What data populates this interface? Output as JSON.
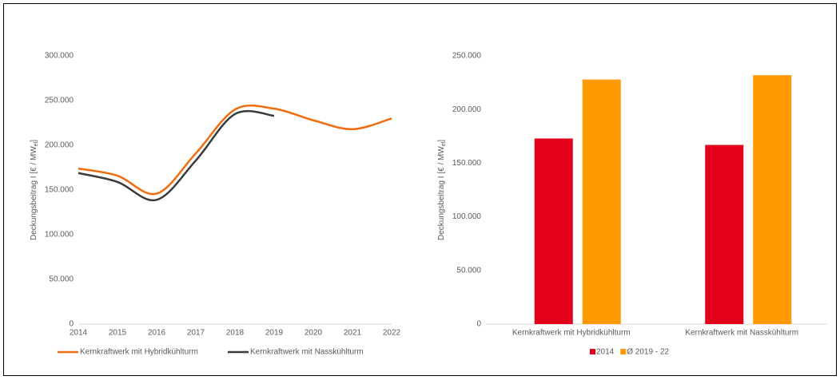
{
  "chart_data": [
    {
      "type": "line",
      "ylabel": [
        "Deckungsbeitrag  I [€ / MW",
        "el",
        "]"
      ],
      "x": [
        2014,
        2015,
        2016,
        2017,
        2018,
        2019,
        2020,
        2021,
        2022
      ],
      "xlim": [
        2014,
        2022
      ],
      "xticks": [
        2014,
        2015,
        2016,
        2017,
        2018,
        2019,
        2020,
        2021,
        2022
      ],
      "ylim": [
        0,
        300000
      ],
      "yticks": [
        0,
        {
          "value": 50000,
          "label": "50.000"
        },
        {
          "value": 100000,
          "label": "100.000"
        },
        {
          "value": 150000,
          "label": "150.000"
        },
        {
          "value": 200000,
          "label": "200.000"
        },
        {
          "value": 250000,
          "label": "250.000"
        },
        {
          "value": 300000,
          "label": "300.000"
        }
      ],
      "series": [
        {
          "name": "Kernkraftwerk mit Hybridkühlturm",
          "color": "#f26b0f",
          "values": [
            174000,
            166000,
            146000,
            191000,
            240000,
            241000,
            228000,
            218000,
            230000
          ]
        },
        {
          "name": "Kernkraftwerk mit Nasskühlturm",
          "color": "#3a3a3a",
          "values": [
            169000,
            159000,
            139000,
            183000,
            235000,
            233000,
            null,
            null,
            null
          ]
        }
      ]
    },
    {
      "type": "bar",
      "ylabel": [
        "Deckungsbeitrag  I [€ / MW",
        "el",
        "]"
      ],
      "categories": [
        "Kernkraftwerk mit Hybridkühlturm",
        "Kernkraftwerk mit Nasskühlturm"
      ],
      "ylim": [
        0,
        250000
      ],
      "yticks": [
        0,
        {
          "value": 50000,
          "label": "50.000"
        },
        {
          "value": 100000,
          "label": "100.000"
        },
        {
          "value": 150000,
          "label": "150.000"
        },
        {
          "value": 200000,
          "label": "200.000"
        },
        {
          "value": 250000,
          "label": "250.000"
        }
      ],
      "series": [
        {
          "name": "2014",
          "color": "#e2001a",
          "values": [
            173000,
            167000
          ]
        },
        {
          "name": "Ø 2019 - 22",
          "color": "#ff9900",
          "values": [
            228000,
            232000
          ]
        }
      ]
    }
  ]
}
